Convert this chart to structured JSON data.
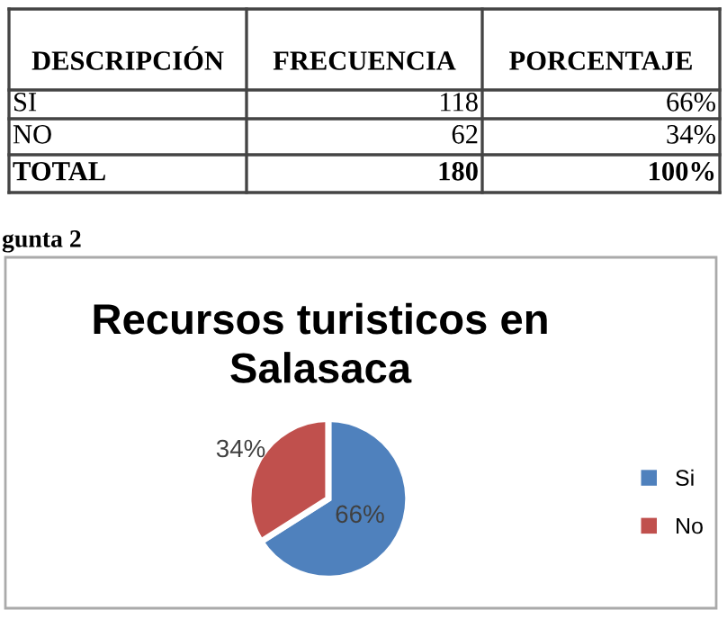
{
  "chart_data": {
    "type": "pie",
    "title": "Recursos turisticos en\nSalasaca",
    "categories": [
      "Si",
      "No"
    ],
    "values": [
      66,
      34
    ],
    "colors": [
      "#4f81bd",
      "#c0504d"
    ],
    "value_labels": [
      "66%",
      "34%"
    ],
    "legend": "right",
    "annotations": [
      "DESCRIPCIÓN",
      "FRECUENCIA",
      "PORCENTAJE",
      "SI",
      "118",
      "66%",
      "NO",
      "62",
      "34%",
      "TOTAL",
      "180",
      "100%",
      "gunta 2"
    ]
  }
}
